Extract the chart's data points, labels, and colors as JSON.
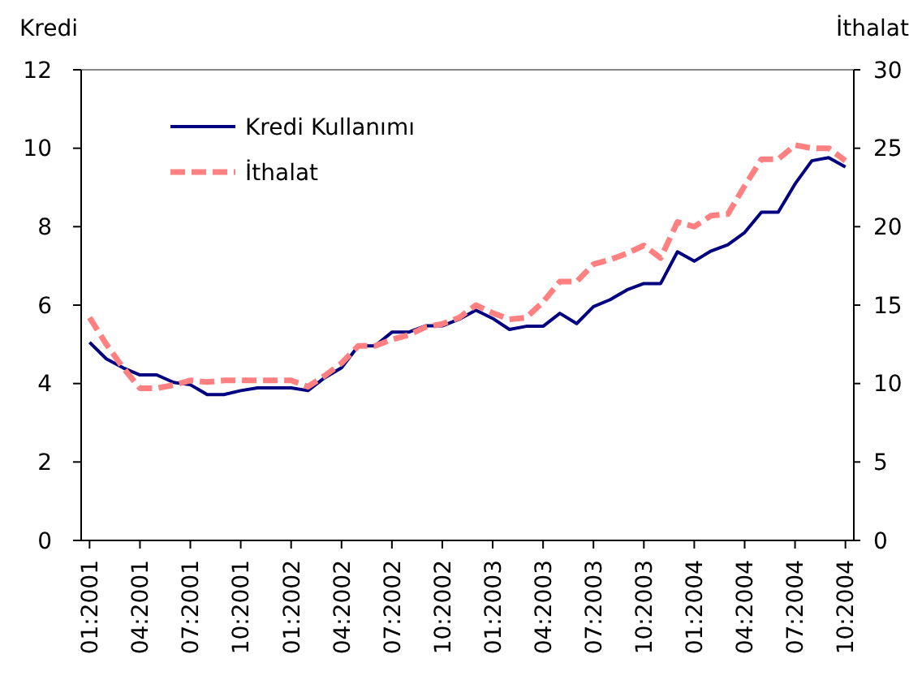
{
  "chart_data": {
    "type": "line",
    "ylabel": "Kredi",
    "y2label": "İthalat",
    "categories": [
      "01:2001",
      null,
      null,
      "04:2001",
      null,
      null,
      "07:2001",
      null,
      null,
      "10:2001",
      null,
      null,
      "01:2002",
      null,
      null,
      "04:2002",
      null,
      null,
      "07:2002",
      null,
      null,
      "10:2002",
      null,
      null,
      "01:2003",
      null,
      null,
      "04:2003",
      null,
      null,
      "07:2003",
      null,
      null,
      "10:2003",
      null,
      null,
      "01:2004",
      null,
      null,
      "04:2004",
      null,
      null,
      "07:2004",
      null,
      null,
      "10:2004"
    ],
    "series": [
      {
        "name": "Kredi Kullanımı",
        "color": "#000080",
        "line_style": "solid",
        "values": [
          5.05,
          4.63,
          4.4,
          4.22,
          4.22,
          4.03,
          3.97,
          3.72,
          3.72,
          3.82,
          3.89,
          3.89,
          3.89,
          3.82,
          4.15,
          4.4,
          4.96,
          4.96,
          5.31,
          5.31,
          5.47,
          5.47,
          5.64,
          5.87,
          5.66,
          5.38,
          5.46,
          5.46,
          5.79,
          5.53,
          5.96,
          6.14,
          6.39,
          6.55,
          6.55,
          7.36,
          7.12,
          7.38,
          7.54,
          7.85,
          8.37,
          8.37,
          9.09,
          9.68,
          9.76,
          9.52
        ]
      },
      {
        "name": "İthalat",
        "color": "#ff8080",
        "line_style": "dashed",
        "axis": "y2",
        "values": [
          14.2,
          12.5,
          11.0,
          9.7,
          9.7,
          9.9,
          10.2,
          10.1,
          10.2,
          10.2,
          10.2,
          10.2,
          10.2,
          9.8,
          10.5,
          11.3,
          12.4,
          12.4,
          12.8,
          13.1,
          13.6,
          13.8,
          14.2,
          15.0,
          14.5,
          14.1,
          14.2,
          15.2,
          16.5,
          16.5,
          17.6,
          17.9,
          18.3,
          18.8,
          18.0,
          20.3,
          20.0,
          20.7,
          20.8,
          22.6,
          24.3,
          24.3,
          25.2,
          25.0,
          25.0,
          24.2
        ]
      }
    ],
    "ylim": [
      0,
      12
    ],
    "yticks": [
      0,
      2,
      4,
      6,
      8,
      10,
      12
    ],
    "y2lim": [
      0,
      30
    ],
    "y2ticks": [
      0,
      5,
      10,
      15,
      20,
      25,
      30
    ],
    "grid": false,
    "legend": "top left",
    "marker": "none"
  }
}
